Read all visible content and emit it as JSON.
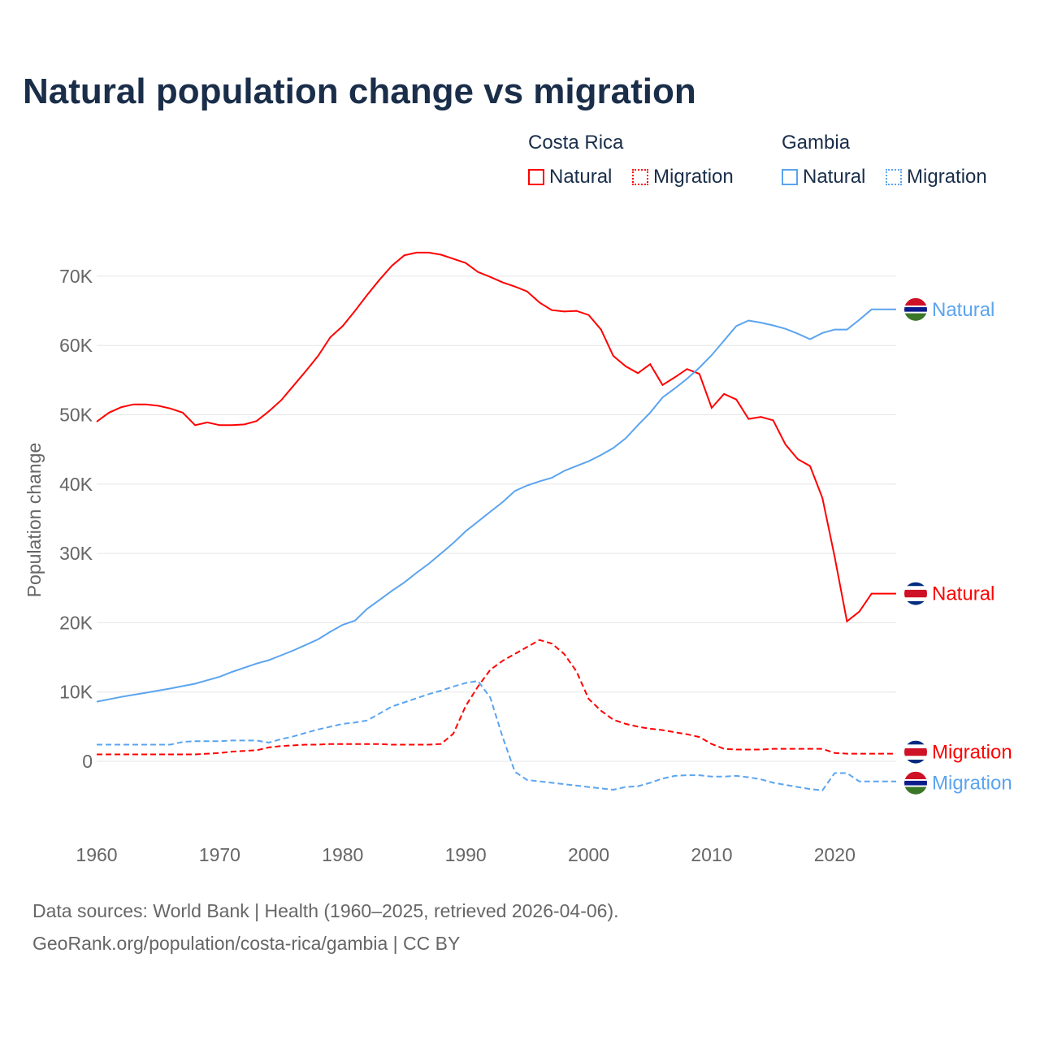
{
  "title": "Natural population change vs migration",
  "legend": {
    "groups": [
      {
        "name": "Costa Rica",
        "items": [
          {
            "label": "Natural",
            "style": "solid"
          },
          {
            "label": "Migration",
            "style": "dotted"
          }
        ],
        "color": "#ff0000"
      },
      {
        "name": "Gambia",
        "items": [
          {
            "label": "Natural",
            "style": "solid"
          },
          {
            "label": "Migration",
            "style": "dotted"
          }
        ],
        "color": "#5ba4ef"
      }
    ]
  },
  "footer": {
    "line1": "Data sources: World Bank | Health (1960–2025, retrieved 2026-04-06).",
    "line2": "GeoRank.org/population/costa-rica/gambia | CC BY"
  },
  "chart_data": {
    "type": "line",
    "title": "Natural population change vs migration",
    "xlabel": "",
    "ylabel": "Population change",
    "xlim": [
      1960,
      2025
    ],
    "ylim": [
      -8000,
      75000
    ],
    "grid": true,
    "legend_placement": "top-right",
    "x_ticks": [
      1960,
      1970,
      1980,
      1990,
      2000,
      2010,
      2020
    ],
    "x_tick_labels": [
      "1960",
      "1970",
      "1980",
      "1990",
      "2000",
      "2010",
      "2020"
    ],
    "y_ticks": [
      0,
      10000,
      20000,
      30000,
      40000,
      50000,
      60000,
      70000
    ],
    "y_tick_labels": [
      "0",
      "10K",
      "20K",
      "30K",
      "40K",
      "50K",
      "60K",
      "70K"
    ],
    "x_start": 1960,
    "series": [
      {
        "name": "Costa Rica Natural",
        "end_label": "Natural",
        "color": "#ff0000",
        "dashed": false,
        "flag": "costa-rica",
        "values": [
          49000,
          50300,
          51100,
          51500,
          51500,
          51300,
          50900,
          50300,
          48500,
          48900,
          48500,
          48500,
          48600,
          49100,
          50500,
          52100,
          54200,
          56300,
          58500,
          61200,
          62800,
          65000,
          67300,
          69500,
          71500,
          73000,
          73400,
          73400,
          73100,
          72500,
          71900,
          70600,
          69900,
          69100,
          68500,
          67800,
          66200,
          65100,
          64900,
          65000,
          64400,
          62300,
          58500,
          57000,
          56000,
          57300,
          54300,
          55400,
          56600,
          55900,
          51000,
          53000,
          52200,
          49400,
          49700,
          49200,
          45700,
          43600,
          42600,
          38000,
          29500,
          20200,
          21600,
          24200,
          24200,
          24200
        ]
      },
      {
        "name": "Costa Rica Migration",
        "end_label": "Migration",
        "color": "#ff0000",
        "dashed": true,
        "flag": "costa-rica",
        "values": [
          1000,
          1000,
          1000,
          1000,
          1000,
          1000,
          1000,
          1000,
          1000,
          1100,
          1200,
          1400,
          1500,
          1600,
          2000,
          2200,
          2300,
          2400,
          2400,
          2500,
          2500,
          2500,
          2500,
          2500,
          2400,
          2400,
          2400,
          2400,
          2500,
          4000,
          8000,
          10800,
          13200,
          14500,
          15500,
          16500,
          17500,
          17000,
          15500,
          13000,
          9000,
          7300,
          6000,
          5400,
          5000,
          4700,
          4500,
          4200,
          3900,
          3500,
          2500,
          1800,
          1700,
          1700,
          1700,
          1800,
          1800,
          1800,
          1800,
          1800,
          1200,
          1100,
          1100,
          1100,
          1100,
          1100
        ]
      },
      {
        "name": "Gambia Natural",
        "end_label": "Natural",
        "color": "#5ba4ef",
        "dashed": false,
        "flag": "gambia",
        "values": [
          8600,
          8950,
          9300,
          9600,
          9900,
          10200,
          10500,
          10850,
          11200,
          11700,
          12200,
          12900,
          13500,
          14100,
          14600,
          15300,
          16000,
          16800,
          17600,
          18700,
          19700,
          20300,
          22000,
          23300,
          24600,
          25800,
          27200,
          28500,
          30000,
          31500,
          33200,
          34600,
          36000,
          37400,
          39000,
          39800,
          40400,
          40900,
          41900,
          42600,
          43300,
          44200,
          45200,
          46600,
          48500,
          50300,
          52500,
          53800,
          55200,
          56800,
          58600,
          60700,
          62800,
          63600,
          63300,
          62900,
          62400,
          61700,
          60900,
          61800,
          62300,
          62300,
          63700,
          65200,
          65200,
          65200
        ]
      },
      {
        "name": "Gambia Migration",
        "end_label": "Migration",
        "color": "#5ba4ef",
        "dashed": true,
        "flag": "gambia",
        "values": [
          2400,
          2400,
          2400,
          2400,
          2400,
          2400,
          2400,
          2800,
          2900,
          2900,
          2900,
          3000,
          3000,
          3000,
          2700,
          3200,
          3600,
          4100,
          4600,
          5000,
          5400,
          5600,
          5900,
          6900,
          7900,
          8500,
          9100,
          9700,
          10200,
          10800,
          11300,
          11600,
          9200,
          3500,
          -1500,
          -2700,
          -2900,
          -3100,
          -3300,
          -3500,
          -3700,
          -3900,
          -4100,
          -3700,
          -3600,
          -3100,
          -2500,
          -2100,
          -2000,
          -2000,
          -2200,
          -2200,
          -2100,
          -2300,
          -2600,
          -3100,
          -3400,
          -3700,
          -4000,
          -4200,
          -1700,
          -1700,
          -2900,
          -2900,
          -2900,
          -2900
        ]
      }
    ]
  }
}
